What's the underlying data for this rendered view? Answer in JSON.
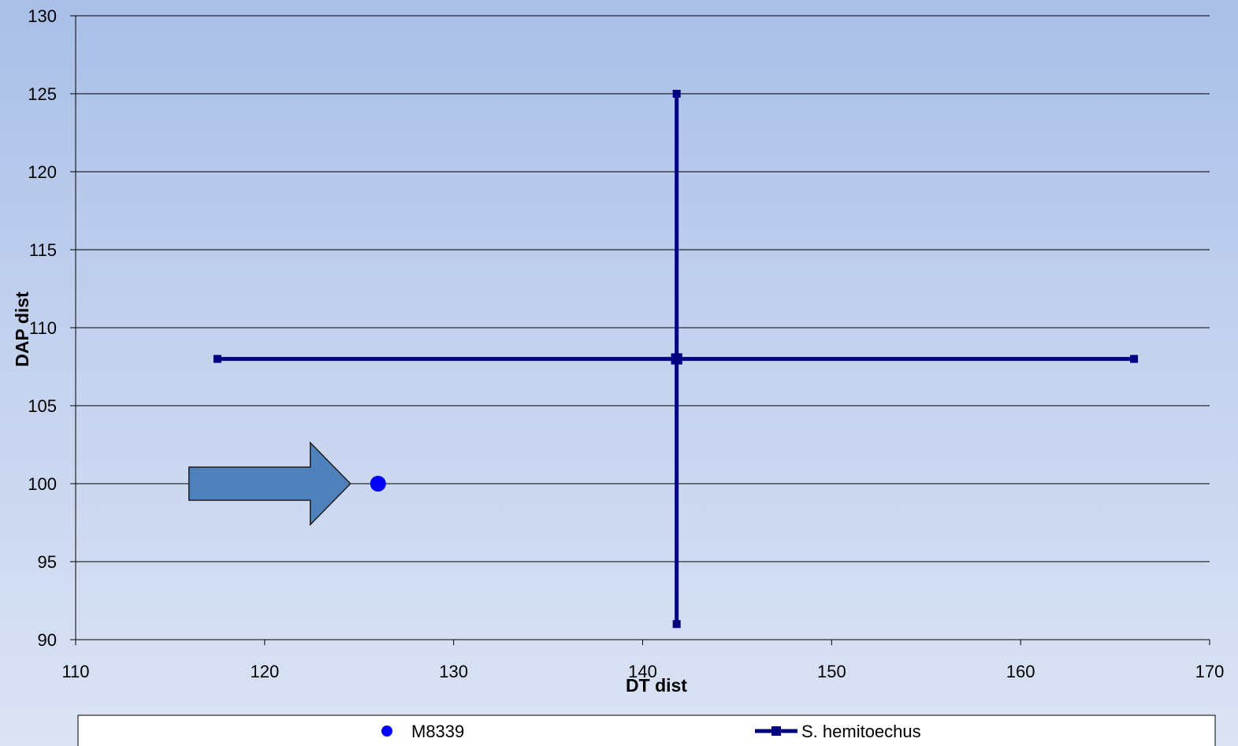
{
  "chart_data": {
    "type": "scatter",
    "title": "",
    "xlabel": "DT dist",
    "ylabel": "DAP dist",
    "xlim": [
      110,
      170
    ],
    "ylim": [
      90,
      130
    ],
    "x_ticks": [
      110,
      120,
      130,
      140,
      150,
      160,
      170
    ],
    "y_ticks": [
      90,
      95,
      100,
      105,
      110,
      115,
      120,
      125,
      130
    ],
    "grid": "horizontal",
    "legend_position": "bottom",
    "series": [
      {
        "name": "M8339",
        "kind": "points",
        "color": "#0000ff",
        "marker": "circle",
        "points": [
          {
            "x": 126,
            "y": 100
          }
        ]
      },
      {
        "name": "S. hemitoechus",
        "kind": "cross",
        "color": "#000080",
        "marker": "square",
        "segments": [
          [
            {
              "x": 117.5,
              "y": 108
            },
            {
              "x": 141.8,
              "y": 108
            },
            {
              "x": 166,
              "y": 108
            }
          ],
          [
            {
              "x": 141.8,
              "y": 125
            },
            {
              "x": 141.8,
              "y": 108
            },
            {
              "x": 141.8,
              "y": 91
            }
          ]
        ]
      }
    ],
    "annotations": [
      {
        "type": "arrow",
        "direction": "right",
        "color": "#4f81bd",
        "points_to": "M8339"
      }
    ]
  }
}
